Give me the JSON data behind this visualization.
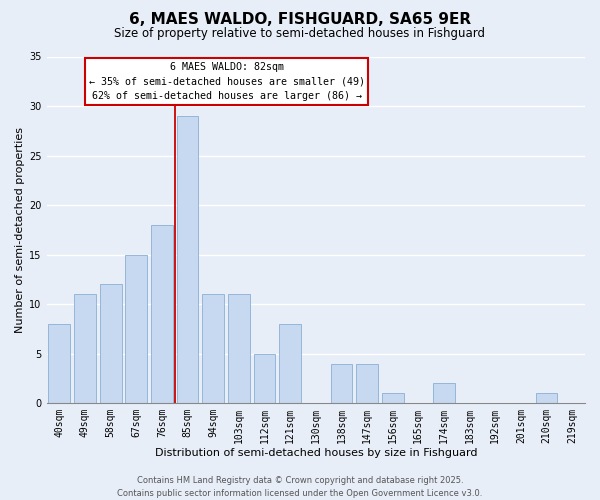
{
  "title": "6, MAES WALDO, FISHGUARD, SA65 9ER",
  "subtitle": "Size of property relative to semi-detached houses in Fishguard",
  "xlabel": "Distribution of semi-detached houses by size in Fishguard",
  "ylabel": "Number of semi-detached properties",
  "categories": [
    "40sqm",
    "49sqm",
    "58sqm",
    "67sqm",
    "76sqm",
    "85sqm",
    "94sqm",
    "103sqm",
    "112sqm",
    "121sqm",
    "130sqm",
    "138sqm",
    "147sqm",
    "156sqm",
    "165sqm",
    "174sqm",
    "183sqm",
    "192sqm",
    "201sqm",
    "210sqm",
    "219sqm"
  ],
  "values": [
    8,
    11,
    12,
    15,
    18,
    29,
    11,
    11,
    5,
    8,
    0,
    4,
    4,
    1,
    0,
    2,
    0,
    0,
    0,
    1,
    0
  ],
  "bar_color": "#c7d9f0",
  "bar_edge_color": "#8bafd4",
  "highlight_index": 5,
  "highlight_color": "#cc0000",
  "ylim": [
    0,
    35
  ],
  "yticks": [
    0,
    5,
    10,
    15,
    20,
    25,
    30,
    35
  ],
  "annotation_title": "6 MAES WALDO: 82sqm",
  "annotation_line1": "← 35% of semi-detached houses are smaller (49)",
  "annotation_line2": "62% of semi-detached houses are larger (86) →",
  "annotation_box_color": "#ffffff",
  "annotation_box_edge": "#cc0000",
  "footer1": "Contains HM Land Registry data © Crown copyright and database right 2025.",
  "footer2": "Contains public sector information licensed under the Open Government Licence v3.0.",
  "background_color": "#e8eef8",
  "grid_color": "#ffffff",
  "title_fontsize": 11,
  "subtitle_fontsize": 8.5,
  "tick_fontsize": 7,
  "label_fontsize": 8,
  "footer_fontsize": 6
}
